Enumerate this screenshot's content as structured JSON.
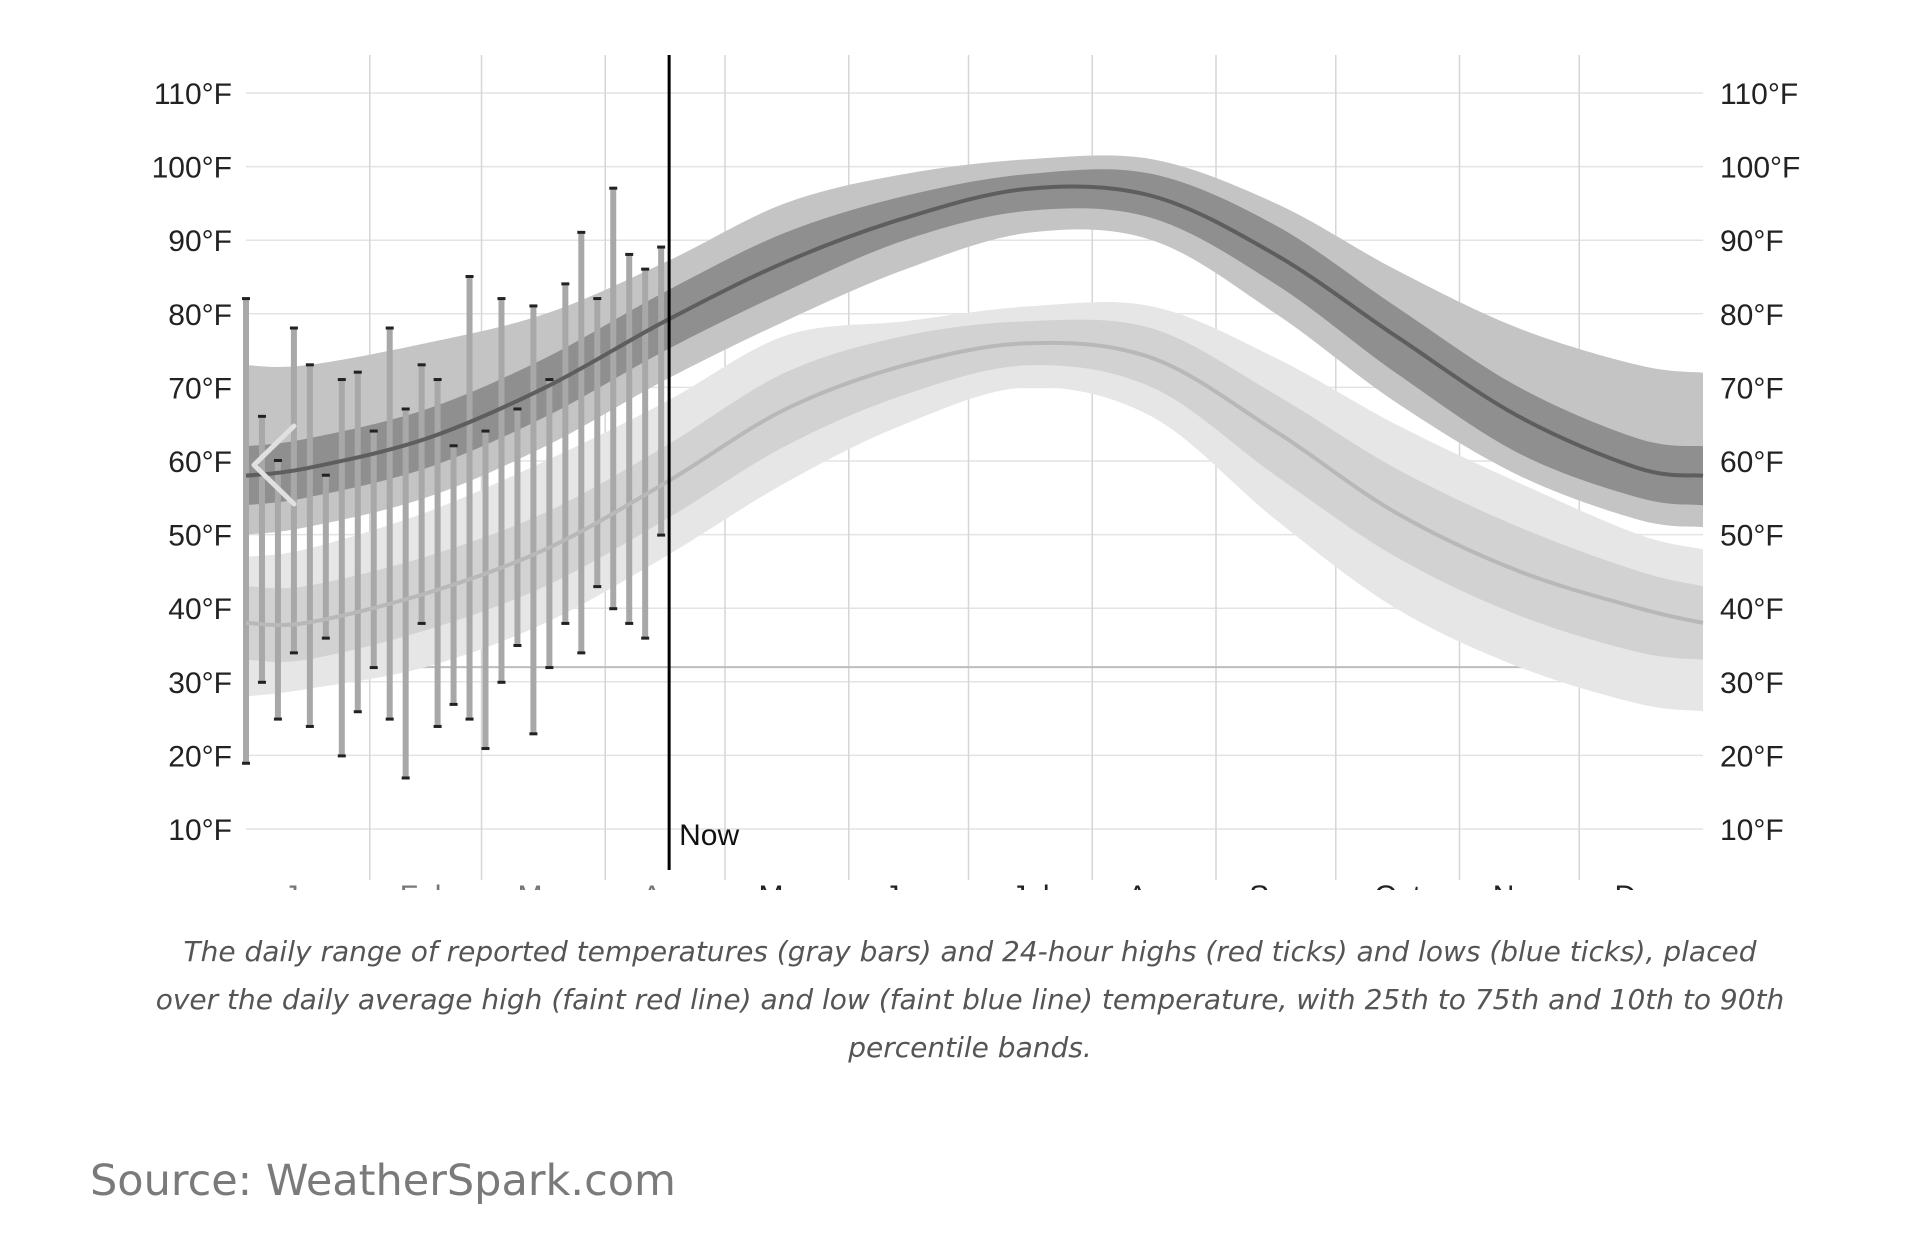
{
  "chart_data": {
    "type": "area",
    "title": "",
    "xlabel": "",
    "ylabel": "",
    "ylim": [
      3,
      114
    ],
    "y_ticks": [
      {
        "value": 10,
        "label": "10°F"
      },
      {
        "value": 20,
        "label": "20°F"
      },
      {
        "value": 30,
        "label": "30°F"
      },
      {
        "value": 40,
        "label": "40°F"
      },
      {
        "value": 50,
        "label": "50°F"
      },
      {
        "value": 60,
        "label": "60°F"
      },
      {
        "value": 70,
        "label": "70°F"
      },
      {
        "value": 80,
        "label": "80°F"
      },
      {
        "value": 90,
        "label": "90°F"
      },
      {
        "value": 100,
        "label": "100°F"
      },
      {
        "value": 110,
        "label": "110°F"
      }
    ],
    "categories": [
      "Jan",
      "Feb",
      "Mar",
      "Apr",
      "May",
      "Jun",
      "Jul",
      "Aug",
      "Sep",
      "Oct",
      "Nov",
      "Dec"
    ],
    "freezing_line": 32,
    "now_marker": {
      "label": "Now",
      "day": 106
    },
    "series": [
      {
        "name": "Average high",
        "days": [
          0,
          15,
          45,
          75,
          105,
          135,
          165,
          196,
          227,
          258,
          288,
          319,
          349,
          365
        ],
        "mean": [
          58,
          59,
          63,
          70,
          79,
          87,
          93,
          97,
          96,
          88,
          77,
          66,
          59,
          58
        ],
        "p25": [
          54,
          55,
          59,
          66,
          75,
          83,
          90,
          94,
          93,
          84,
          72,
          61,
          55,
          54
        ],
        "p75": [
          62,
          63,
          67,
          74,
          83,
          91,
          96,
          99,
          99,
          92,
          81,
          70,
          63,
          62
        ],
        "p10": [
          50,
          51,
          55,
          62,
          71,
          79,
          86,
          91,
          90,
          80,
          68,
          58,
          52,
          51
        ],
        "p90": [
          73,
          73,
          76,
          80,
          87,
          95,
          99,
          101,
          101,
          95,
          86,
          78,
          73,
          72
        ]
      },
      {
        "name": "Average low",
        "days": [
          0,
          15,
          45,
          75,
          105,
          135,
          165,
          196,
          227,
          258,
          288,
          319,
          349,
          365
        ],
        "mean": [
          38,
          38,
          42,
          48,
          57,
          67,
          73,
          76,
          74,
          64,
          53,
          45,
          40,
          38
        ],
        "p25": [
          33,
          33,
          37,
          43,
          52,
          62,
          69,
          73,
          70,
          58,
          47,
          39,
          34,
          33
        ],
        "p75": [
          43,
          43,
          47,
          53,
          62,
          72,
          77,
          79,
          78,
          69,
          59,
          51,
          45,
          43
        ],
        "p10": [
          28,
          29,
          32,
          38,
          47,
          57,
          65,
          70,
          66,
          52,
          40,
          32,
          27,
          26
        ],
        "p90": [
          47,
          48,
          53,
          60,
          68,
          77,
          79,
          81,
          81,
          74,
          65,
          57,
          50,
          48
        ]
      }
    ],
    "daily_reported": {
      "days": [
        0,
        4,
        8,
        12,
        16,
        20,
        24,
        28,
        32,
        36,
        40,
        44,
        48,
        52,
        56,
        60,
        64,
        68,
        72,
        76,
        80,
        84,
        88,
        92,
        96,
        100,
        104
      ],
      "lows": [
        19,
        30,
        25,
        34,
        24,
        36,
        20,
        26,
        32,
        25,
        17,
        38,
        24,
        27,
        25,
        21,
        30,
        35,
        23,
        32,
        38,
        34,
        43,
        40,
        38,
        36,
        50
      ],
      "highs": [
        82,
        66,
        60,
        78,
        73,
        58,
        71,
        72,
        64,
        78,
        67,
        73,
        71,
        62,
        85,
        64,
        82,
        67,
        81,
        71,
        84,
        91,
        82,
        97,
        88,
        86,
        89
      ]
    }
  },
  "caption": "The daily range of reported temperatures (gray bars) and 24-hour highs (red ticks) and lows (blue ticks), placed over the daily average high (faint red line) and low (faint blue line) temperature, with 25th to 75th and 10th to 90th percentile bands.",
  "source": "Source: WeatherSpark.com",
  "colors": {
    "grid": "#e3e3e3",
    "month_grid": "#d6d6d6",
    "high_p90": "#c4c4c4",
    "high_p75": "#8f8f8f",
    "high_line": "#5e5e5e",
    "low_p90": "#e6e6e6",
    "low_p75": "#d2d2d2",
    "low_line": "#b8b8b8",
    "daily_bar": "#a8a8a8",
    "text": "#222222",
    "text_past": "#777777"
  },
  "nav": {
    "prev_icon": "chevron-left-icon"
  }
}
